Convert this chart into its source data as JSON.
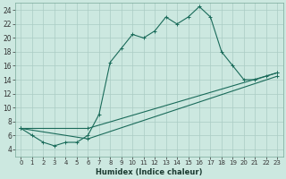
{
  "xlabel": "Humidex (Indice chaleur)",
  "background_color": "#cce8e0",
  "grid_color": "#aaccc4",
  "line_color": "#1a6b5a",
  "xlim": [
    -0.5,
    23.5
  ],
  "ylim": [
    3,
    25
  ],
  "yticks": [
    4,
    6,
    8,
    10,
    12,
    14,
    16,
    18,
    20,
    22,
    24
  ],
  "xticks": [
    0,
    1,
    2,
    3,
    4,
    5,
    6,
    7,
    8,
    9,
    10,
    11,
    12,
    13,
    14,
    15,
    16,
    17,
    18,
    19,
    20,
    21,
    22,
    23
  ],
  "line1_x": [
    0,
    1,
    2,
    3,
    4,
    5,
    6,
    7,
    8,
    9,
    10,
    11,
    12,
    13,
    14,
    15,
    16,
    17,
    18,
    19,
    20,
    21,
    22,
    23
  ],
  "line1_y": [
    7,
    6,
    5,
    4.5,
    5,
    5,
    6,
    9,
    16.5,
    18.5,
    20.5,
    20,
    21,
    23,
    22,
    23,
    24.5,
    23,
    18,
    16,
    14,
    14,
    14.5,
    15
  ],
  "line2_x": [
    0,
    6,
    23
  ],
  "line2_y": [
    7,
    7,
    15
  ],
  "line3_x": [
    0,
    6,
    23
  ],
  "line3_y": [
    7,
    5.5,
    14.5
  ]
}
